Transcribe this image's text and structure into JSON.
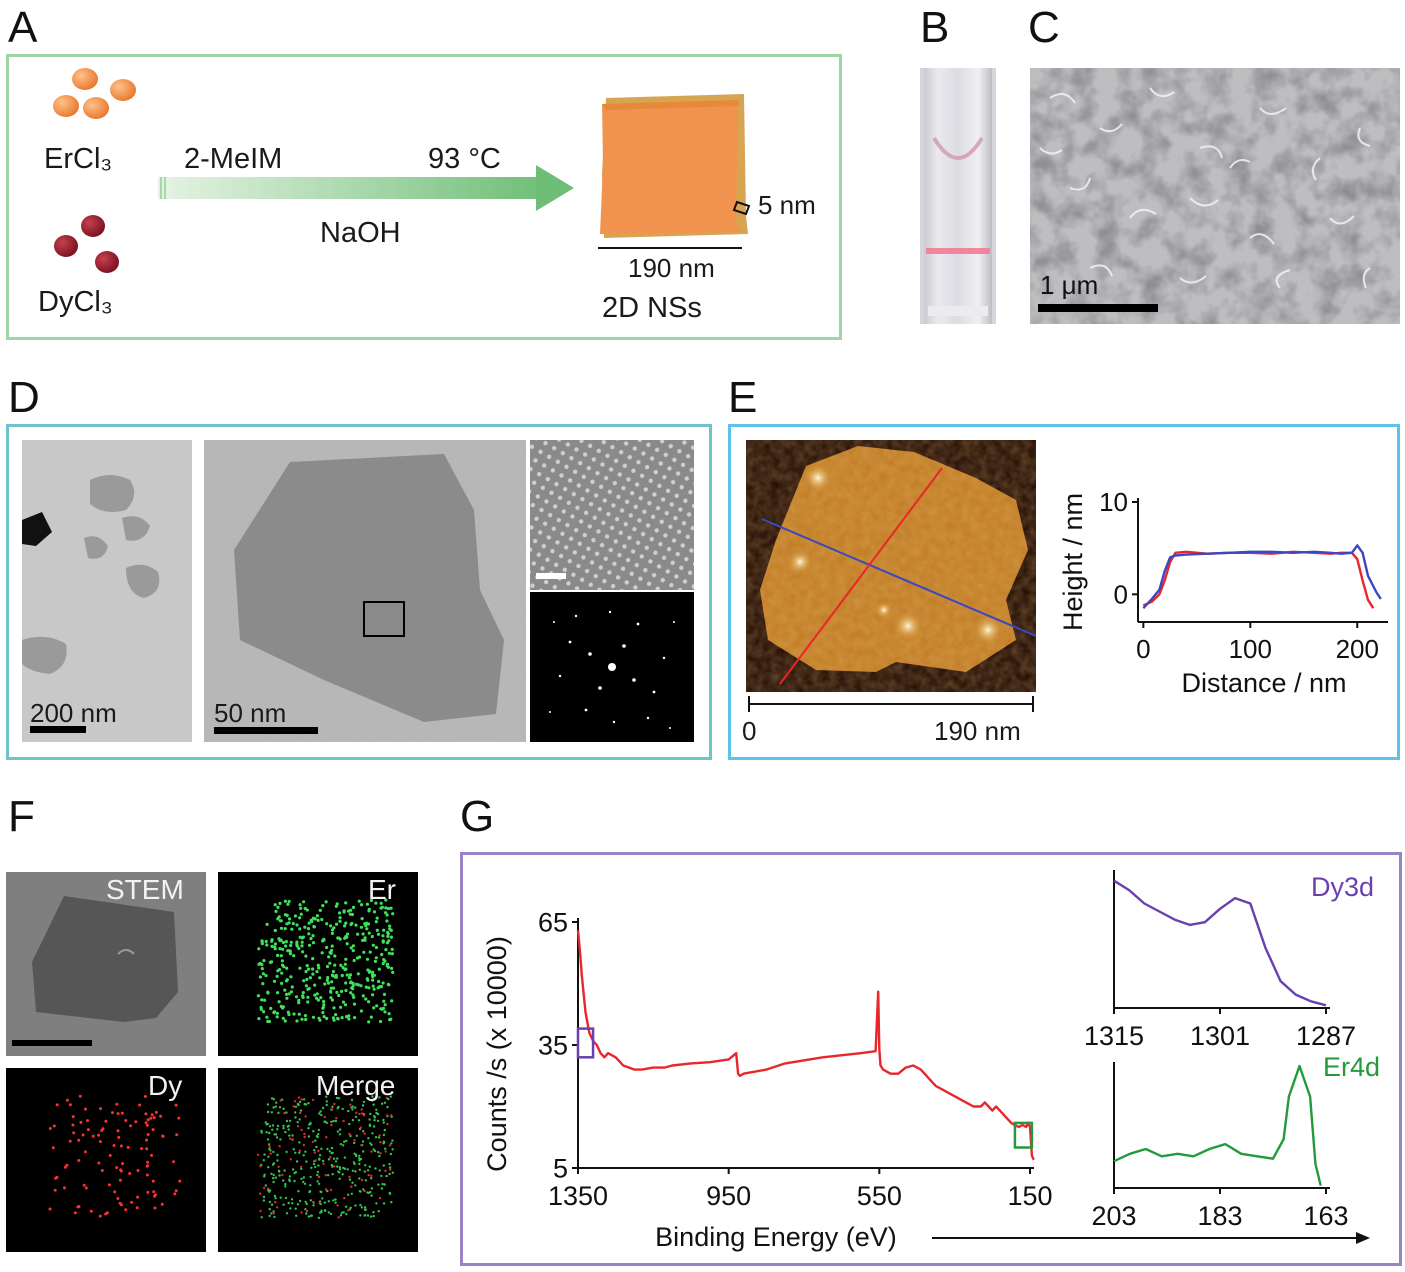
{
  "panels": {
    "a": "A",
    "b": "B",
    "c": "C",
    "d": "D",
    "e": "E",
    "f": "F",
    "g": "G"
  },
  "panel_a": {
    "reagent1": "ErCl₃",
    "reagent2": "DyCl₃",
    "ligand": "2-MeIM",
    "temperature": "93 °C",
    "base": "NaOH",
    "thickness": "5 nm",
    "width": "190 nm",
    "product": "2D NSs"
  },
  "panel_c": {
    "scalebar": "1 μm"
  },
  "panel_d": {
    "scalebar_left": "200 nm",
    "scalebar_mid": "50 nm"
  },
  "panel_e": {
    "afm_axis_start": "0",
    "afm_axis_end": "190 nm"
  },
  "panel_f": {
    "stem": "STEM",
    "er": "Er",
    "dy": "Dy",
    "merge": "Merge"
  },
  "panel_g": {
    "inset1_label": "Dy3d",
    "inset2_label": "Er4d"
  },
  "colors": {
    "frame_a": "#9fd4a3",
    "frame_d": "#6fc4cc",
    "frame_e": "#5bc3ea",
    "frame_g": "#9b82c4",
    "red": "#e8262b",
    "blue": "#3c47c0",
    "purple": "#6a3fb0",
    "green": "#239a3c",
    "sheet_orange": "#f1924f"
  },
  "chart_data": [
    {
      "type": "line",
      "xlabel": "Distance / nm",
      "ylabel": "Height / nm",
      "xticks": [
        0,
        100,
        200
      ],
      "yticks": [
        0,
        10
      ],
      "xlim": [
        -5,
        225
      ],
      "ylim": [
        -3,
        10
      ],
      "series": [
        {
          "color": "#e8262b",
          "x": [
            0,
            8,
            15,
            20,
            25,
            30,
            40,
            60,
            80,
            100,
            120,
            140,
            160,
            175,
            185,
            195,
            200,
            205,
            210,
            215
          ],
          "y": [
            -1.2,
            -0.8,
            0,
            1.5,
            3.5,
            4.5,
            4.6,
            4.4,
            4.5,
            4.5,
            4.4,
            4.6,
            4.5,
            4.4,
            4.5,
            4.5,
            3.8,
            1.5,
            -0.6,
            -1.5
          ]
        },
        {
          "color": "#3c47c0",
          "x": [
            0,
            8,
            15,
            20,
            25,
            30,
            40,
            60,
            80,
            100,
            120,
            140,
            160,
            175,
            185,
            195,
            200,
            205,
            210,
            218,
            222
          ],
          "y": [
            -1.5,
            -0.5,
            0.5,
            2.5,
            4.0,
            4.2,
            4.3,
            4.4,
            4.5,
            4.6,
            4.6,
            4.5,
            4.6,
            4.5,
            4.4,
            4.5,
            5.3,
            4.5,
            2.0,
            0.2,
            -0.5
          ]
        }
      ]
    },
    {
      "type": "line",
      "xlabel": "Binding Energy (eV)",
      "ylabel": "Counts /s (x 10000)",
      "xticks": [
        1350,
        950,
        550,
        150
      ],
      "yticks": [
        5,
        35,
        65
      ],
      "xlim": [
        1350,
        150
      ],
      "ylim": [
        5,
        65
      ],
      "series": [
        {
          "color": "#e8262b",
          "x": [
            1350,
            1345,
            1340,
            1330,
            1320,
            1310,
            1300,
            1295,
            1290,
            1280,
            1270,
            1250,
            1230,
            1200,
            1180,
            1150,
            1120,
            1100,
            1050,
            1000,
            950,
            930,
            925,
            920,
            910,
            900,
            850,
            800,
            700,
            600,
            560,
            553,
            550,
            547,
            540,
            520,
            500,
            480,
            460,
            440,
            420,
            400,
            380,
            360,
            340,
            320,
            300,
            280,
            270,
            260,
            250,
            240,
            230,
            220,
            200,
            180,
            170,
            160,
            155,
            150,
            145,
            140
          ],
          "y": [
            63,
            58,
            52,
            43,
            38,
            36,
            35,
            34,
            33,
            32,
            33,
            32,
            30,
            29,
            29,
            29.5,
            29.5,
            30,
            30.5,
            30.8,
            31.5,
            33,
            28,
            27.5,
            28,
            28.2,
            29,
            30.5,
            32,
            33,
            33.5,
            48,
            34,
            30,
            29,
            28,
            28,
            29.5,
            30,
            29,
            27,
            25,
            24,
            23,
            22,
            21,
            20,
            20,
            21,
            20,
            19,
            20,
            19,
            18,
            16,
            15,
            15.5,
            15,
            16,
            15,
            8,
            7
          ]
        }
      ],
      "boxes": [
        {
          "color": "#6a3fb0",
          "x": [
            1350,
            1310
          ],
          "y": [
            32,
            39
          ]
        },
        {
          "color": "#239a3c",
          "x": [
            190,
            145
          ],
          "y": [
            10,
            16
          ]
        }
      ]
    },
    {
      "type": "line",
      "title": "Dy3d",
      "xticks": [
        1315,
        1301,
        1287
      ],
      "xlim": [
        1315,
        1287
      ],
      "ylim": [
        0,
        1
      ],
      "series": [
        {
          "color": "#6a3fb0",
          "x": [
            1315,
            1313,
            1311,
            1309,
            1307,
            1305,
            1303,
            1301,
            1299,
            1297,
            1295,
            1293,
            1291,
            1289,
            1287
          ],
          "y": [
            0.95,
            0.88,
            0.78,
            0.72,
            0.66,
            0.62,
            0.64,
            0.74,
            0.82,
            0.78,
            0.45,
            0.2,
            0.1,
            0.05,
            0.02
          ]
        }
      ]
    },
    {
      "type": "line",
      "title": "Er4d",
      "xticks": [
        203,
        183,
        163
      ],
      "xlim": [
        203,
        163
      ],
      "ylim": [
        0,
        1
      ],
      "series": [
        {
          "color": "#239a3c",
          "x": [
            203,
            200,
            197,
            194,
            191,
            188,
            185,
            182,
            179,
            176,
            173,
            171,
            170,
            168,
            166,
            165,
            164
          ],
          "y": [
            0.22,
            0.28,
            0.32,
            0.26,
            0.28,
            0.26,
            0.32,
            0.36,
            0.28,
            0.26,
            0.24,
            0.4,
            0.75,
            1.0,
            0.75,
            0.2,
            0.02
          ]
        }
      ]
    }
  ]
}
